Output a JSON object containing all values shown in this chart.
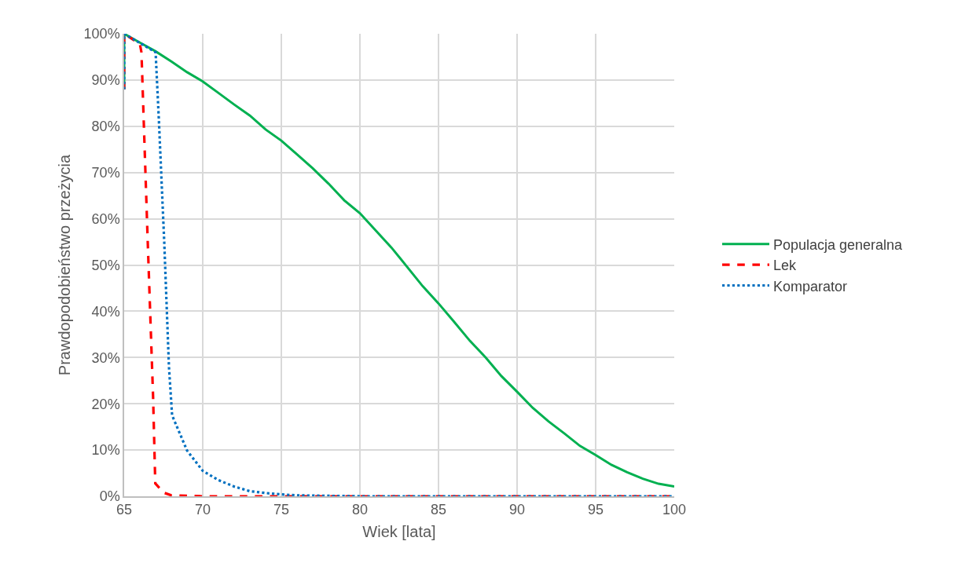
{
  "chart_data": {
    "type": "line",
    "xlabel": "Wiek [lata]",
    "ylabel": "Prawdopodobieństwo przeżycia",
    "xlim": [
      65,
      100
    ],
    "xticks": [
      65,
      70,
      75,
      80,
      85,
      90,
      95,
      100
    ],
    "ylim": [
      0,
      100
    ],
    "yticks": [
      {
        "value": 0,
        "label": "0%"
      },
      {
        "value": 10,
        "label": "10%"
      },
      {
        "value": 20,
        "label": "20%"
      },
      {
        "value": 30,
        "label": "30%"
      },
      {
        "value": 40,
        "label": "40%"
      },
      {
        "value": 50,
        "label": "50%"
      },
      {
        "value": 60,
        "label": "60%"
      },
      {
        "value": 70,
        "label": "70%"
      },
      {
        "value": 80,
        "label": "80%"
      },
      {
        "value": 90,
        "label": "90%"
      },
      {
        "value": 100,
        "label": "100%"
      }
    ],
    "grid": true,
    "legend": "right",
    "marker": "none",
    "series": [
      {
        "name": "Populacja generalna",
        "color": "#00b050",
        "line_style": "solid",
        "x": [
          65,
          65,
          66,
          67,
          68,
          69,
          70,
          71,
          72,
          73,
          74,
          75,
          76,
          77,
          78,
          79,
          80,
          82,
          84,
          85,
          86,
          87,
          88,
          89,
          90,
          91,
          92,
          93,
          94,
          95,
          96,
          97,
          98,
          99,
          100
        ],
        "values": [
          88,
          100,
          98.1,
          96.2,
          94,
          91.7,
          89.7,
          87.2,
          84.7,
          82.3,
          79.3,
          76.9,
          73.9,
          70.9,
          67.6,
          64,
          61.2,
          53.8,
          45.4,
          41.7,
          37.7,
          33.6,
          30,
          26,
          22.6,
          19.1,
          16.2,
          13.6,
          10.9,
          8.9,
          6.8,
          5.2,
          3.8,
          2.7,
          2.1
        ]
      },
      {
        "name": "Lek",
        "color": "#ff0000",
        "line_style": "dashed",
        "x": [
          65,
          65,
          66,
          66.1,
          66.5,
          66.84,
          66.98,
          67.5,
          68,
          70,
          75,
          80,
          85,
          90,
          95,
          100
        ],
        "values": [
          88,
          100,
          97.8,
          96,
          55,
          21.6,
          2.8,
          0.8,
          0.2,
          0,
          0,
          0,
          0,
          0,
          0,
          0
        ]
      },
      {
        "name": "Komparator",
        "color": "#0070c0",
        "line_style": "dotted",
        "x": [
          65,
          65,
          66,
          67,
          67.2,
          67.55,
          67.85,
          68.05,
          69,
          70,
          71,
          72,
          73,
          74,
          75,
          76,
          78,
          80,
          85,
          90,
          95,
          100
        ],
        "values": [
          88,
          100,
          98,
          96,
          82,
          55,
          28,
          17.5,
          9.9,
          5.5,
          3.5,
          2.1,
          1.1,
          0.7,
          0.4,
          0.2,
          0.1,
          0,
          0,
          0,
          0,
          0
        ]
      }
    ]
  }
}
